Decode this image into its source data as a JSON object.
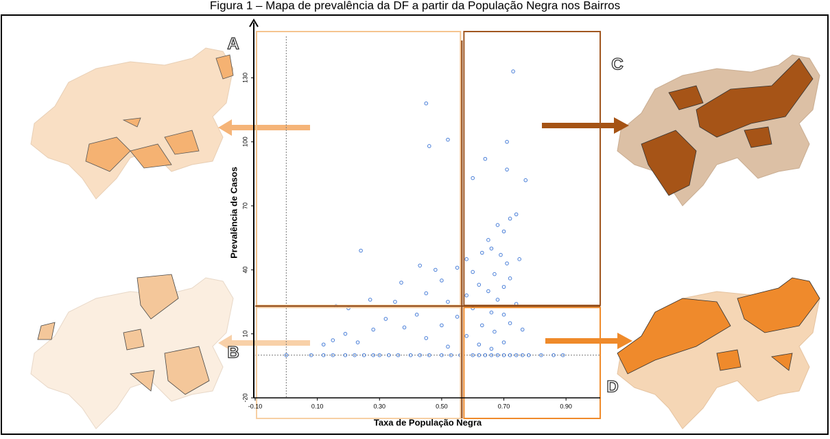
{
  "title": "Figura 1 – Mapa de prevalência da DF a partir da População Negra nos Bairros",
  "chart_data": {
    "type": "scatter",
    "x_label": "Taxa de População Negra",
    "y_label": "Prevalência de Casos",
    "color": "#4a7fd8",
    "xlim": [
      -0.1,
      1.01
    ],
    "ylim": [
      -20,
      152
    ],
    "xticks": [
      {
        "value": -0.1,
        "label": "-0.10"
      },
      {
        "value": 0.1,
        "label": "0.10"
      },
      {
        "value": 0.3,
        "label": "0.30"
      },
      {
        "value": 0.5,
        "label": "0.50"
      },
      {
        "value": 0.7,
        "label": "0.70"
      },
      {
        "value": 0.9,
        "label": "0.90"
      }
    ],
    "yticks": [
      -20,
      10,
      40,
      70,
      100,
      130
    ],
    "reference_lines": {
      "x": 0,
      "y": 0
    },
    "quadrant_lines": {
      "x": 0.565,
      "y": 23
    },
    "quadrant_labels": [
      "A",
      "B",
      "C",
      "D"
    ],
    "x": [
      0.0,
      0.08,
      0.12,
      0.15,
      0.19,
      0.22,
      0.25,
      0.28,
      0.3,
      0.33,
      0.36,
      0.4,
      0.43,
      0.46,
      0.5,
      0.53,
      0.56,
      0.6,
      0.62,
      0.64,
      0.66,
      0.68,
      0.7,
      0.72,
      0.74,
      0.76,
      0.78,
      0.82,
      0.86,
      0.89,
      0.73,
      0.45,
      0.52,
      0.46,
      0.71,
      0.64,
      0.71,
      0.6,
      0.77,
      0.74,
      0.72,
      0.68,
      0.7,
      0.65,
      0.66,
      0.63,
      0.69,
      0.75,
      0.71,
      0.58,
      0.24,
      0.43,
      0.48,
      0.55,
      0.6,
      0.67,
      0.72,
      0.37,
      0.5,
      0.62,
      0.7,
      0.65,
      0.58,
      0.45,
      0.27,
      0.35,
      0.52,
      0.68,
      0.74,
      0.6,
      0.66,
      0.7,
      0.55,
      0.42,
      0.32,
      0.2,
      0.16,
      0.5,
      0.63,
      0.72,
      0.38,
      0.28,
      0.19,
      0.12,
      0.15,
      0.23,
      0.45,
      0.58,
      0.67,
      0.7,
      0.62,
      0.52,
      0.76,
      0.66
    ],
    "values": [
      0,
      0,
      0,
      0,
      0,
      0,
      0,
      0,
      0,
      0,
      0,
      0,
      0,
      0,
      0,
      0,
      0,
      0,
      0,
      0,
      0,
      0,
      0,
      0,
      0,
      0,
      0,
      0,
      0,
      0,
      133,
      118,
      101,
      98,
      100,
      92,
      87,
      83,
      82,
      66,
      64,
      61,
      58,
      54,
      50,
      48,
      47,
      45,
      43,
      45,
      49,
      42,
      40,
      41,
      39,
      38,
      36,
      34,
      35,
      33,
      32,
      30,
      28,
      29,
      26,
      25,
      25,
      26,
      24,
      22,
      20,
      19,
      18,
      19,
      17,
      22,
      23,
      14,
      14,
      15,
      13,
      12,
      10,
      5,
      7,
      6,
      8,
      9,
      11,
      6,
      5,
      4,
      12,
      3
    ]
  }
}
